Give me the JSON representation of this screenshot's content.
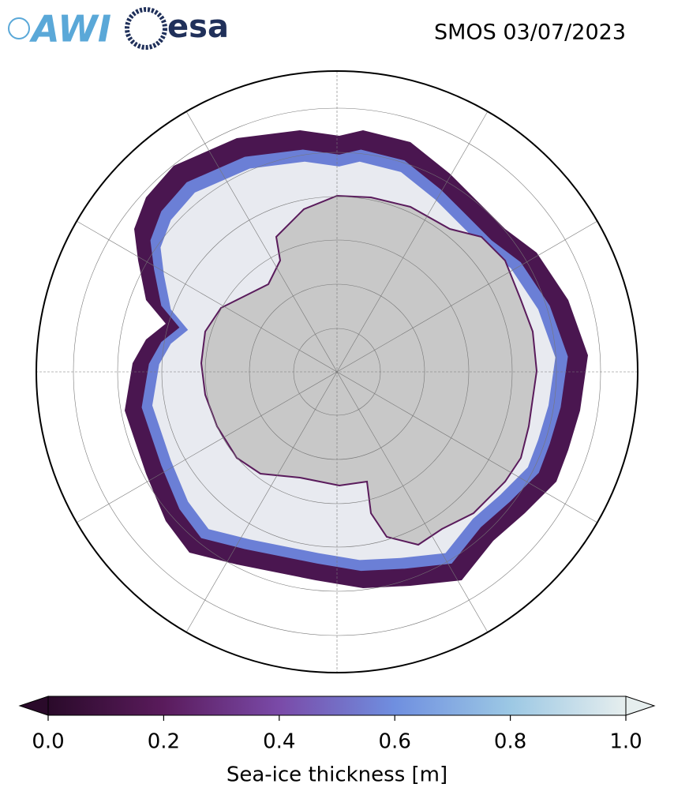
{
  "logos": [
    "AWI",
    "esa"
  ],
  "title": "SMOS 03/07/2023",
  "colorbar": {
    "label": "Sea-ice thickness [m]",
    "lim": [
      0,
      1
    ],
    "ticks": [
      {
        "value": 0,
        "label": "0.0"
      },
      {
        "value": 0.2,
        "label": "0.2"
      },
      {
        "value": 0.4,
        "label": "0.4"
      },
      {
        "value": 0.6,
        "label": "0.6"
      },
      {
        "value": 0.8,
        "label": "0.8"
      },
      {
        "value": 1,
        "label": "1.0"
      }
    ],
    "colors": [
      "#2a0a2a",
      "#5a1b5c",
      "#7a4aa8",
      "#6f8fe0",
      "#9cc8e4",
      "#e6eeee"
    ]
  }
}
